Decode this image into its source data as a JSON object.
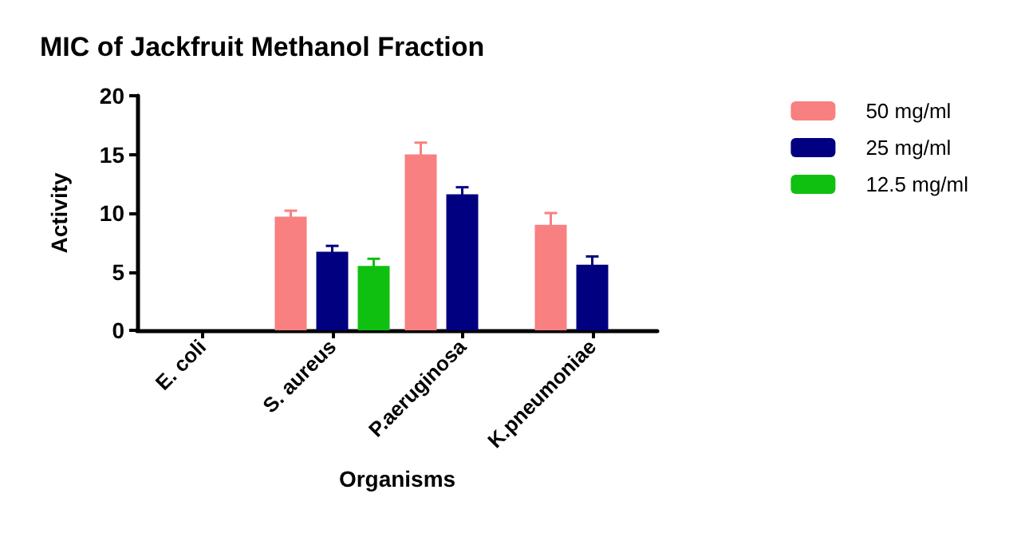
{
  "chart_data": {
    "type": "bar",
    "title": "MIC of Jackfruit Methanol Fraction",
    "xlabel": "Organisms",
    "ylabel": "Activity",
    "categories": [
      "E. coli",
      "S. aureus",
      "P.aeruginosa",
      "K.pneumoniae"
    ],
    "series": [
      {
        "name": "50 mg/ml",
        "color": "#f88080",
        "values": [
          null,
          9.7,
          15.0,
          9.0
        ],
        "errors": [
          null,
          0.5,
          1.0,
          1.0
        ]
      },
      {
        "name": "25 mg/ml",
        "color": "#000080",
        "values": [
          null,
          6.7,
          11.6,
          5.6
        ],
        "errors": [
          null,
          0.5,
          0.6,
          0.7
        ]
      },
      {
        "name": "12.5 mg/ml",
        "color": "#10c010",
        "values": [
          null,
          5.5,
          null,
          null
        ],
        "errors": [
          null,
          0.6,
          null,
          null
        ]
      }
    ],
    "ylim": [
      0,
      20
    ],
    "yticks": [
      0,
      5,
      10,
      15,
      20
    ],
    "grid": false,
    "legend": "top right"
  }
}
